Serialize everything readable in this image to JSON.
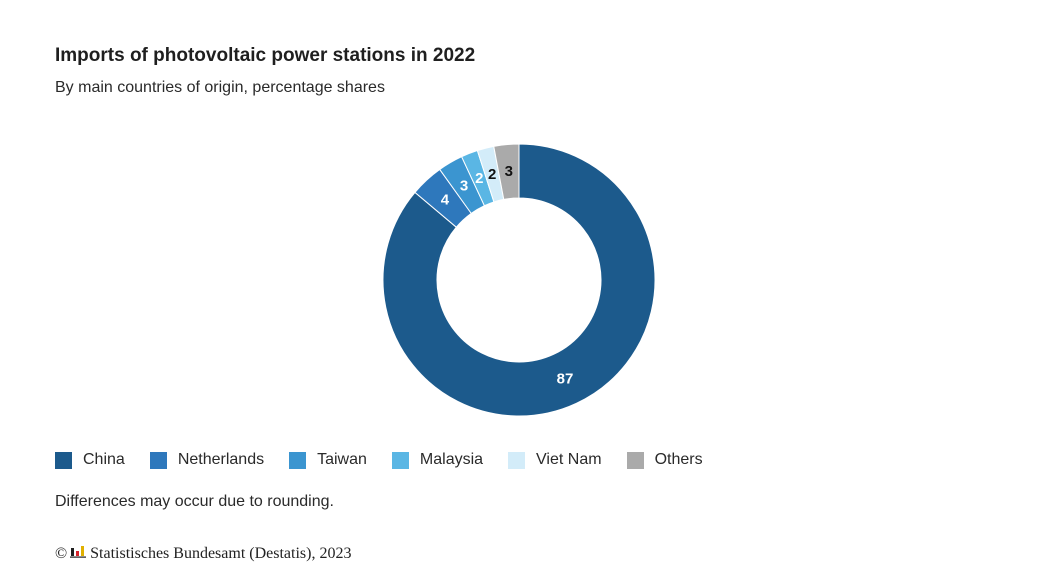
{
  "header": {
    "title": "Imports of photovoltaic power stations in 2022",
    "subtitle": "By main countries of origin, percentage shares"
  },
  "chart_data": {
    "type": "pie",
    "donut": true,
    "title": "Imports of photovoltaic power stations in 2022",
    "subtitle": "By main countries of origin, percentage shares",
    "unit": "%",
    "categories": [
      "China",
      "Netherlands",
      "Taiwan",
      "Malaysia",
      "Viet Nam",
      "Others"
    ],
    "values": [
      87,
      4,
      3,
      2,
      2,
      3
    ],
    "labels": [
      "87",
      "4",
      "3",
      "2",
      "2",
      "3"
    ],
    "colors": [
      "#1c5a8c",
      "#2e78bc",
      "#3b95d0",
      "#5ab6e4",
      "#d3ecf9",
      "#aaaaaa"
    ],
    "label_colors": [
      "#ffffff",
      "#ffffff",
      "#ffffff",
      "#ffffff",
      "#111111",
      "#111111"
    ],
    "legend_position": "bottom-left",
    "order": "clockwise from top, largest first, Others last"
  },
  "footer": {
    "note": "Differences may occur due to rounding.",
    "copyright_symbol": "©",
    "source": "Statistisches Bundesamt (Destatis), 2023"
  }
}
